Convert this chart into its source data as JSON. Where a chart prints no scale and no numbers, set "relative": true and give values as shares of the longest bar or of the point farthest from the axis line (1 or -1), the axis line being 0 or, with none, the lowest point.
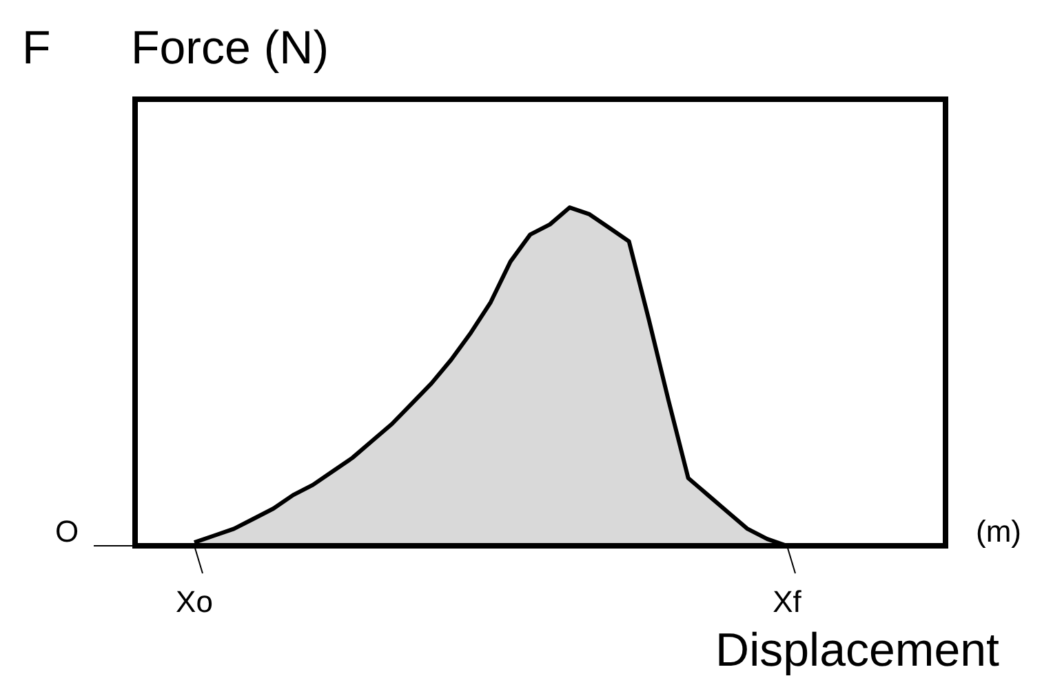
{
  "chart_data": {
    "type": "area",
    "title": "Force (N)",
    "xlabel": "Displacement",
    "relative": true,
    "color": "#000000",
    "annotations": [
      "F",
      "O",
      "(m)"
    ],
    "categories": [
      "Xo",
      null,
      null,
      null,
      null,
      null,
      null,
      null,
      null,
      null,
      null,
      null,
      null,
      null,
      null,
      null,
      null,
      null,
      null,
      null,
      null,
      null,
      null,
      null,
      null,
      null,
      null,
      null,
      null,
      null,
      "Xf"
    ],
    "values": [
      0.01,
      0.03,
      0.05,
      0.08,
      0.11,
      0.15,
      0.18,
      0.22,
      0.26,
      0.31,
      0.36,
      0.42,
      0.48,
      0.55,
      0.63,
      0.72,
      0.84,
      0.92,
      0.95,
      1,
      0.98,
      0.94,
      0.9,
      0.67,
      0.43,
      0.2,
      0.15,
      0.1,
      0.05,
      0.02,
      0
    ]
  }
}
